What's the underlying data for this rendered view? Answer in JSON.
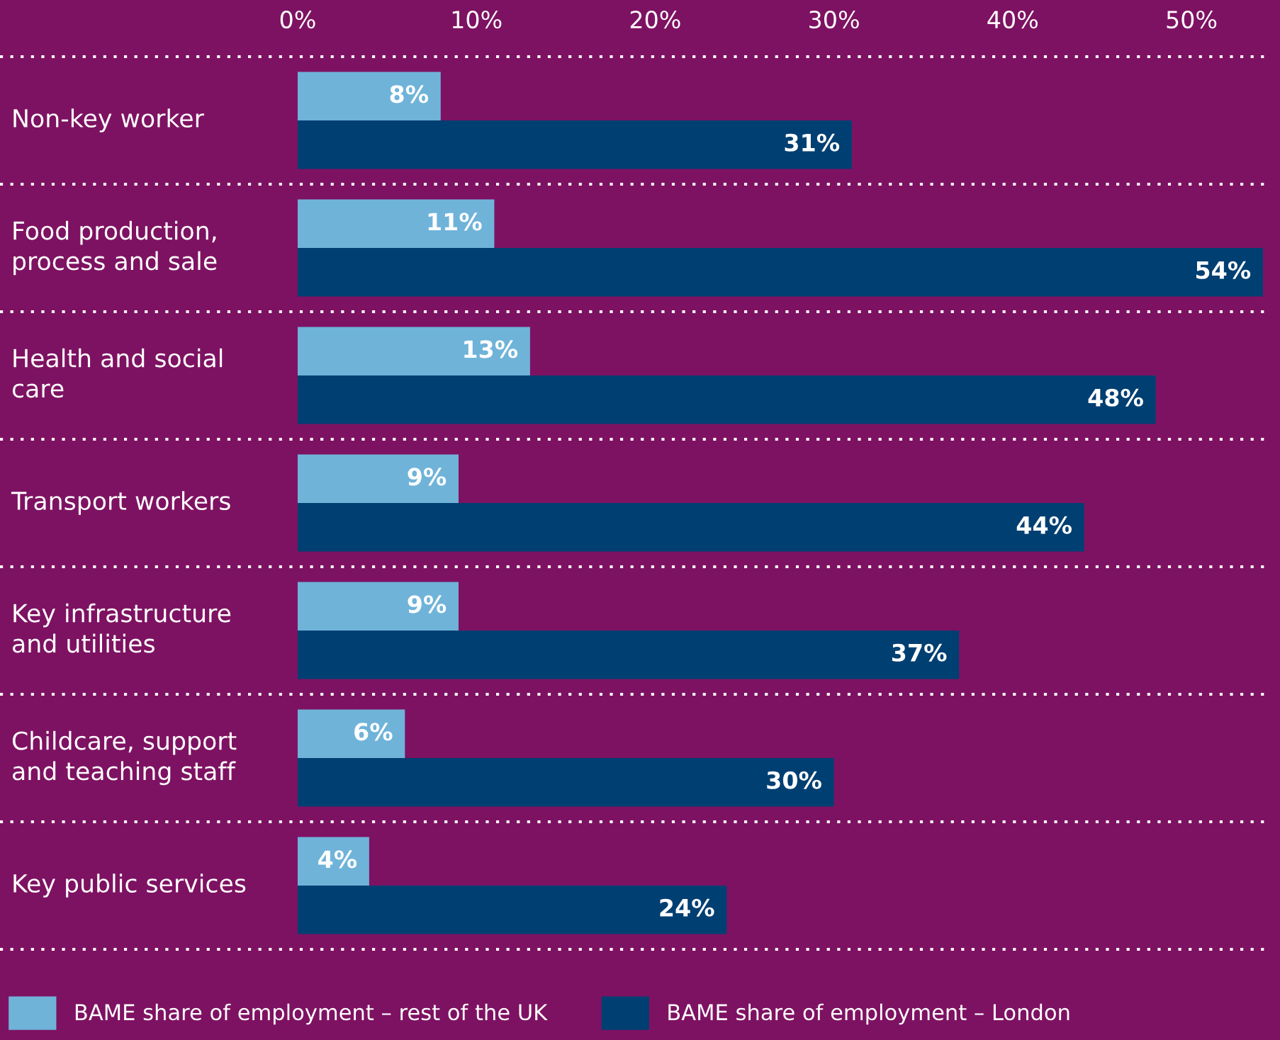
{
  "chart_data": {
    "type": "bar",
    "orientation": "horizontal",
    "categories": [
      "Non-key worker",
      "Food production,\nprocess and sale",
      "Health and social\ncare",
      "Transport workers",
      "Key infrastructure\nand utilities",
      "Childcare, support\nand teaching staff",
      "Key public services"
    ],
    "series": [
      {
        "name": "BAME share of employment – rest of the UK",
        "color": "#6fb3d9",
        "values": [
          8,
          11,
          13,
          9,
          9,
          6,
          4
        ],
        "value_labels": [
          "8%",
          "11%",
          "13%",
          "9%",
          "9%",
          "6%",
          "4%"
        ]
      },
      {
        "name": "BAME share of employment – London",
        "color": "#003f72",
        "values": [
          31,
          54,
          48,
          44,
          37,
          30,
          24
        ],
        "value_labels": [
          "31%",
          "54%",
          "48%",
          "44%",
          "37%",
          "30%",
          "24%"
        ]
      }
    ],
    "xlim": [
      0,
      54.4
    ],
    "xticks": [
      {
        "value": 0,
        "label": "0%"
      },
      {
        "value": 10,
        "label": "10%"
      },
      {
        "value": 20,
        "label": "20%"
      },
      {
        "value": 30,
        "label": "30%"
      },
      {
        "value": 40,
        "label": "40%"
      },
      {
        "value": 50,
        "label": "50%"
      }
    ],
    "grid": "y",
    "legend": "bottom"
  }
}
